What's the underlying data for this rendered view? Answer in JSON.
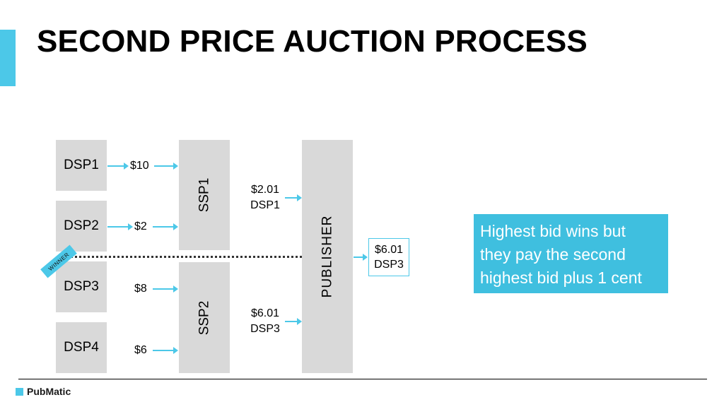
{
  "title": "SECOND PRICE AUCTION PROCESS",
  "accent_color": "#4cc8e8",
  "dsps": [
    {
      "label": "DSP1",
      "bid": "$10"
    },
    {
      "label": "DSP2",
      "bid": "$2"
    },
    {
      "label": "DSP3",
      "bid": "$8"
    },
    {
      "label": "DSP4",
      "bid": "$6"
    }
  ],
  "ssps": [
    {
      "label": "SSP1",
      "price": "$2.01",
      "winner": "DSP1"
    },
    {
      "label": "SSP2",
      "price": "$6.01",
      "winner": "DSP3"
    }
  ],
  "publisher": {
    "label": "PUBLISHER"
  },
  "result": {
    "price": "$6.01",
    "winner": "DSP3"
  },
  "winner_tag": "WINNER",
  "info": {
    "line1": "Highest bid wins but",
    "line2": "they pay the second",
    "line3": "highest bid plus 1 cent"
  },
  "logo": {
    "text": "PubMatic"
  }
}
